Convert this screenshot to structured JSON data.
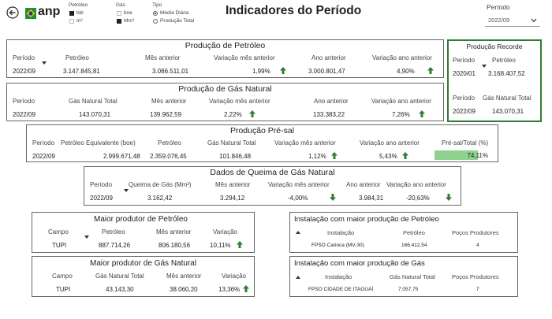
{
  "header": {
    "title": "Indicadores do Período",
    "logo_text": "anp",
    "legend_petroleo": {
      "title": "Petróleo",
      "opt1": "bbl",
      "opt2": "m³"
    },
    "legend_gas": {
      "title": "Gás",
      "opt1": "boe",
      "opt2": "Mm³"
    },
    "legend_tipo": {
      "title": "Tipo",
      "opt1": "Média Diária",
      "opt2": "Produção Total"
    },
    "periodo_label": "Período",
    "periodo_value": "2022/09"
  },
  "prod_petroleo": {
    "title": "Produção de Petróleo",
    "headers": [
      "Período",
      "Petróleo",
      "Mês anterior",
      "Variação mês anterior",
      "Ano anterior",
      "Variação ano anterior"
    ],
    "values": [
      "2022/09",
      "3.147.845,81",
      "3.086.511,01",
      "1,99%",
      "3.000.801,47",
      "4,90%"
    ]
  },
  "prod_gas": {
    "title": "Produção de Gás Natural",
    "headers": [
      "Período",
      "Gás Natural Total",
      "Mês anterior",
      "Variação mês anterior",
      "Ano anterior",
      "Variação ano anterior"
    ],
    "values": [
      "2022/09",
      "143.070,31",
      "139.962,59",
      "2,22%",
      "133.383,22",
      "7,26%"
    ]
  },
  "recorde": {
    "title": "Produção Recorde",
    "h1": [
      "Período",
      "Petróleo"
    ],
    "v1": [
      "2020/01",
      "3.168.407,52"
    ],
    "h2": [
      "Período",
      "Gás Natural Total"
    ],
    "v2": [
      "2022/09",
      "143.070,31"
    ]
  },
  "presal": {
    "title": "Produção Pré-sal",
    "headers": [
      "Período",
      "Petróleo Equivalente (boe)",
      "Petróleo",
      "Gás Natural Total",
      "Variação mês anterior",
      "Variação ano anterior",
      "Pré-sal/Total (%)"
    ],
    "values": [
      "2022/09",
      "2.999.671,48",
      "2.359.076,45",
      "101.846,48",
      "1,12%",
      "5,43%",
      "74,11%"
    ],
    "ratio": 0.7411
  },
  "queima": {
    "title": "Dados de Queima de Gás Natural",
    "headers": [
      "Período",
      "Queima de Gás (Mm³)",
      "Mês anterior",
      "Variação mês anterior",
      "Ano anterior",
      "Variação ano anterior"
    ],
    "values": [
      "2022/09",
      "3.162,42",
      "3.294,12",
      "-4,00%",
      "3.984,31",
      "-20,63%"
    ]
  },
  "maior_petroleo": {
    "title": "Maior produtor de Petróleo",
    "headers": [
      "Campo",
      "Petróleo",
      "Mês anterior",
      "Variação"
    ],
    "values": [
      "TUPI",
      "887.714,26",
      "806.180,56",
      "10,11%"
    ]
  },
  "maior_gas": {
    "title": "Maior produtor de Gás Natural",
    "headers": [
      "Campo",
      "Gás Natural Total",
      "Mês anterior",
      "Variação"
    ],
    "values": [
      "TUPI",
      "43.143,30",
      "38.060,20",
      "13,36%"
    ]
  },
  "inst_petroleo": {
    "title": "Instalação com maior produção de Petróleo",
    "headers": [
      "Instalação",
      "Petróleo",
      "Poços Produtores"
    ],
    "values": [
      "FPSO Carioca (MV-30)",
      "166.412,54",
      "4"
    ]
  },
  "inst_gas": {
    "title": "Instalação com maior produção de Gás",
    "headers": [
      "Instalação",
      "Gás Natural Total",
      "Poços Produtores"
    ],
    "values": [
      "FPSO CIDADE DE ITAGUAÍ",
      "7.057,75",
      "7"
    ]
  },
  "colors": {
    "up": "#2e7d32",
    "down": "#2e7d32",
    "record_border": "#2e7d32",
    "presal_bar": "#8fd18f"
  }
}
